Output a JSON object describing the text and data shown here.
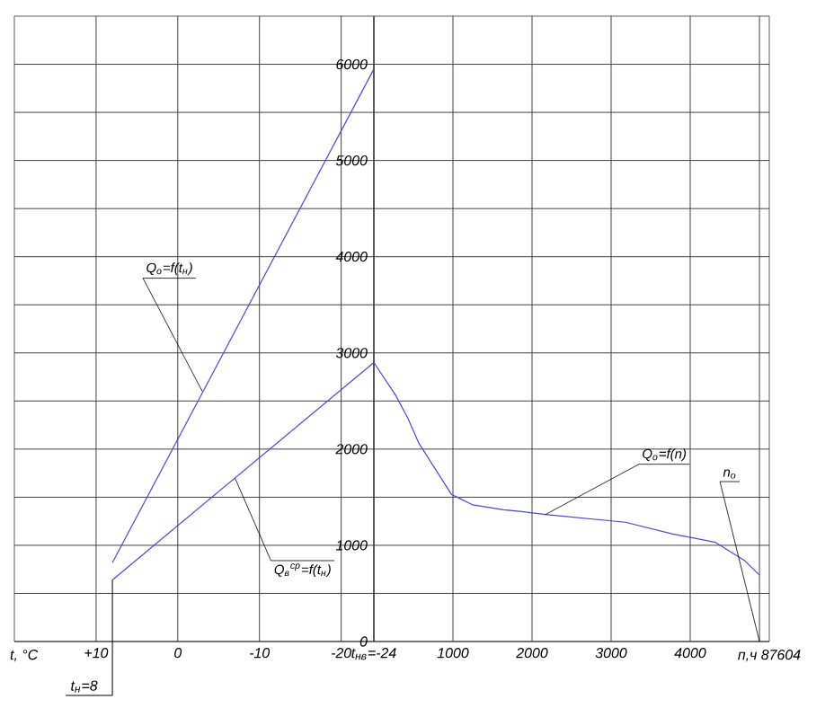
{
  "chart_data": [
    {
      "type": "line",
      "xlabel": "t, °C",
      "x": [
        8,
        -24
      ],
      "series": [
        {
          "color": "#4848e0",
          "values": [
            820,
            5950
          ]
        },
        {
          "color": "#4848e0",
          "values": [
            640,
            2900
          ]
        }
      ],
      "xlim": [
        20,
        -24
      ],
      "xticks": [
        {
          "value": 10,
          "label": "+10"
        },
        0,
        -10,
        -20,
        {
          "value": -24,
          "label": "t$_{нв}$=-24"
        }
      ],
      "ylim": [
        0,
        6500
      ],
      "yticks": [
        0,
        {
          "value": 500,
          "label": null
        },
        1000,
        {
          "value": 1500,
          "label": null
        },
        2000,
        {
          "value": 2500,
          "label": null
        },
        3000,
        {
          "value": 3500,
          "label": null
        },
        4000,
        {
          "value": 4500,
          "label": null
        },
        5000,
        {
          "value": 5500,
          "label": null
        },
        6000
      ],
      "grid": true,
      "tick_labels": "x",
      "line_style": "solid",
      "ref_lines": [
        {
          "axis": "x",
          "value": 8,
          "label": "t$_{н}$=8"
        }
      ],
      "annotations": [
        {
          "text": "Q$_{о}$=f(t$_{н}$)",
          "x": -3,
          "y": 2600
        },
        {
          "text": "Q$_{в}$$^{ср}$=f(t$_{н}$)",
          "x": -7,
          "y": 1700
        }
      ]
    },
    {
      "type": "line",
      "xlabel": "п,ч 87604",
      "x": [
        0,
        275,
        430,
        570,
        980,
        1250,
        1640,
        1870,
        2170,
        3180,
        3770,
        4320,
        4690,
        4876
      ],
      "series": [
        {
          "color": "#4848e0",
          "values": [
            2900,
            2560,
            2320,
            2060,
            1530,
            1420,
            1370,
            1350,
            1320,
            1240,
            1120,
            1030,
            840,
            690
          ]
        }
      ],
      "xlim": [
        0,
        5000
      ],
      "xticks": [
        1000,
        2000,
        3000,
        4000,
        {
          "value": 4876,
          "label": null
        }
      ],
      "ylim": [
        0,
        6500
      ],
      "yticks": [
        0,
        {
          "value": 500,
          "label": null
        },
        1000,
        {
          "value": 1500,
          "label": null
        },
        2000,
        {
          "value": 2500,
          "label": null
        },
        3000,
        {
          "value": 3500,
          "label": null
        },
        4000,
        {
          "value": 4500,
          "label": null
        },
        5000,
        {
          "value": 5500,
          "label": null
        },
        6000
      ],
      "grid": true,
      "line_style": "solid",
      "annotations": [
        {
          "text": "Q$_{о}$=f(n)",
          "x": 2170,
          "y": 1320
        },
        "n$_{о}$"
      ]
    }
  ]
}
